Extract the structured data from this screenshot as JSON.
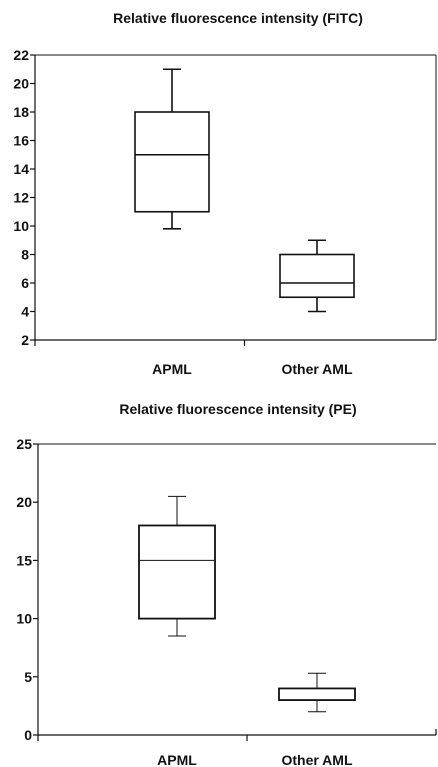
{
  "chart_data": [
    {
      "type": "box",
      "title": "Relative fluorescence intensity (FITC)",
      "xlabel": "",
      "ylabel": "",
      "ylim": [
        2,
        22
      ],
      "yticks": [
        2,
        4,
        6,
        8,
        10,
        12,
        14,
        16,
        18,
        20,
        22
      ],
      "grid": false,
      "frame": "top-right-closed",
      "categories": [
        "APML",
        "Other AML"
      ],
      "boxes": [
        {
          "category": "APML",
          "min": 9.8,
          "q1": 11,
          "median": 15,
          "q3": 18,
          "max": 21
        },
        {
          "category": "Other AML",
          "min": 4,
          "q1": 5,
          "median": 6,
          "q3": 8,
          "max": 9
        }
      ]
    },
    {
      "type": "box",
      "title": "Relative fluorescence intensity (PE)",
      "xlabel": "",
      "ylabel": "",
      "ylim": [
        0,
        25
      ],
      "yticks": [
        0,
        5,
        10,
        15,
        20,
        25
      ],
      "grid": false,
      "frame": "top-right-open",
      "categories": [
        "APML",
        "Other AML"
      ],
      "boxes": [
        {
          "category": "APML",
          "min": 8.5,
          "q1": 10,
          "median": 15,
          "q3": 18,
          "max": 20.5
        },
        {
          "category": "Other AML",
          "min": 2,
          "q1": 3,
          "median": 3,
          "q3": 4,
          "max": 5.3
        }
      ]
    }
  ]
}
